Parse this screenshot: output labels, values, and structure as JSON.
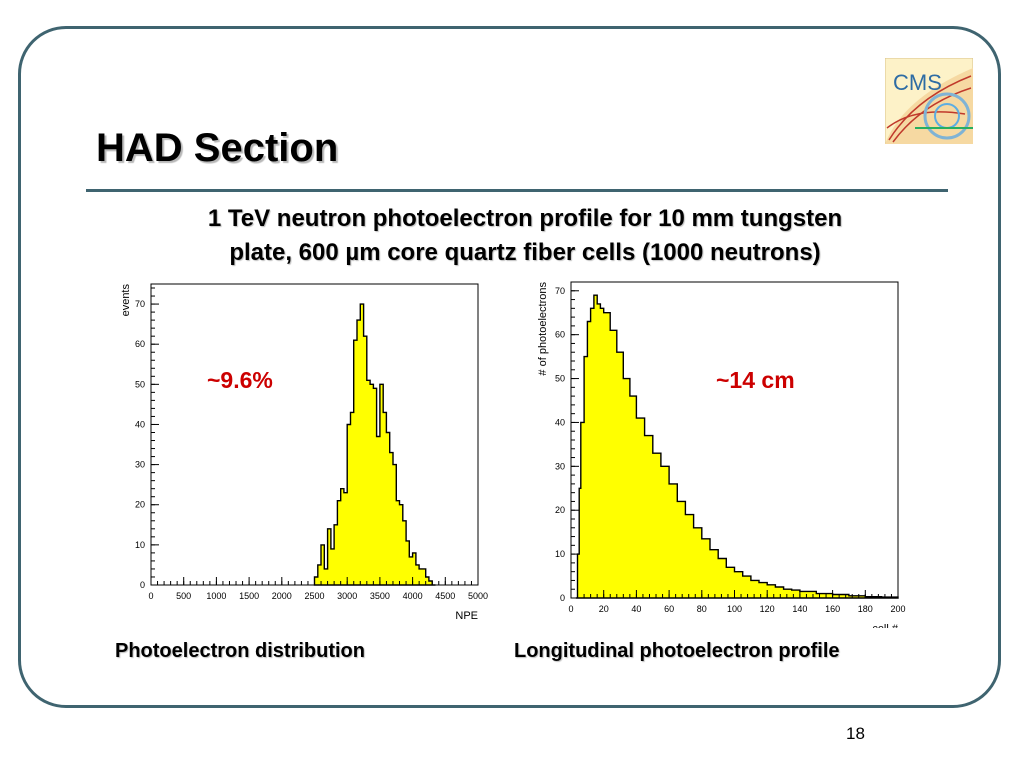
{
  "slide": {
    "title": "HAD Section",
    "subtitle_line1": "1 TeV neutron photoelectron profile for 10 mm tungsten",
    "subtitle_line2": "plate, 600 µm core quartz fiber cells (1000 neutrons)",
    "logo_text": "CMS",
    "page_number": "18",
    "colors": {
      "frame": "#3f6470",
      "annotation": "#cc0000",
      "histogram_fill": "#ffff00"
    }
  },
  "annotations": {
    "left": "~9.6%",
    "right": "~14 cm"
  },
  "captions": {
    "left": "Photoelectron distribution",
    "right": "Longitudinal photoelectron profile"
  },
  "chart_data": [
    {
      "type": "histogram",
      "xlabel": "NPE",
      "ylabel": "events",
      "xlim": [
        0,
        5000
      ],
      "ylim": [
        0,
        75
      ],
      "x_ticks": [
        0,
        500,
        1000,
        1500,
        2000,
        2500,
        3000,
        3500,
        4000,
        4500,
        5000
      ],
      "y_ticks": [
        0,
        10,
        20,
        30,
        40,
        50,
        60,
        70
      ],
      "bin_width": 50,
      "bins_start": [
        2500,
        2550,
        2600,
        2650,
        2700,
        2750,
        2800,
        2850,
        2900,
        2950,
        3000,
        3050,
        3100,
        3150,
        3200,
        3250,
        3300,
        3350,
        3400,
        3450,
        3500,
        3550,
        3600,
        3650,
        3700,
        3750,
        3800,
        3850,
        3900,
        3950,
        4000,
        4050,
        4100,
        4150,
        4200,
        4250,
        4300
      ],
      "values": [
        2,
        5,
        10,
        4,
        14,
        9,
        15,
        21,
        24,
        23,
        40,
        43,
        61,
        66,
        70,
        62,
        51,
        50,
        49,
        37,
        50,
        43,
        38,
        33,
        30,
        21,
        20,
        16,
        11,
        7,
        8,
        5,
        4,
        4,
        2,
        1,
        0
      ],
      "fill": "#ffff00",
      "grid": false
    },
    {
      "type": "histogram",
      "xlabel": "cell #",
      "ylabel": "# of photoelectrons",
      "xlim": [
        0,
        200
      ],
      "ylim": [
        0,
        72
      ],
      "x_ticks": [
        0,
        20,
        40,
        60,
        80,
        100,
        120,
        140,
        160,
        180,
        200
      ],
      "y_ticks": [
        0,
        10,
        20,
        30,
        40,
        50,
        60,
        70
      ],
      "x": [
        3,
        4,
        5,
        6,
        8,
        10,
        12,
        14,
        16,
        18,
        20,
        24,
        28,
        32,
        36,
        40,
        45,
        50,
        55,
        60,
        65,
        70,
        75,
        80,
        85,
        90,
        95,
        100,
        105,
        110,
        115,
        120,
        125,
        130,
        135,
        140,
        150,
        160,
        170,
        180,
        190,
        200
      ],
      "values": [
        0,
        10,
        25,
        40,
        55,
        63,
        66,
        69,
        67,
        66,
        65,
        61,
        56,
        50,
        46,
        41,
        37,
        33,
        30,
        26,
        22,
        19,
        16,
        13.5,
        11,
        9,
        7,
        6,
        5,
        4,
        3.5,
        3,
        2.5,
        2,
        1.8,
        1.5,
        1,
        0.8,
        0.5,
        0.3,
        0.2,
        0
      ],
      "fill": "#ffff00",
      "grid": false
    }
  ]
}
